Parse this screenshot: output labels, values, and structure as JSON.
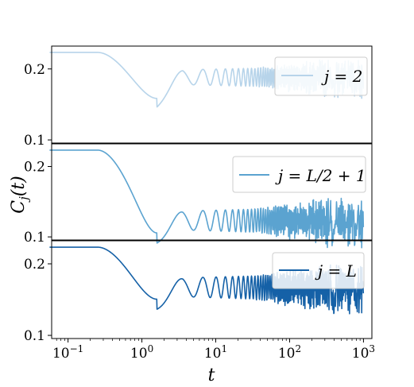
{
  "chart_data": [
    {
      "type": "line",
      "panel": "top",
      "series": [
        {
          "name": "j = 2",
          "color": "#b7d4ea"
        }
      ],
      "xscale": "log",
      "yscale": "log",
      "xlim": [
        0.06,
        1300
      ],
      "ylim": [
        0.097,
        0.25
      ],
      "yticks": [
        {
          "value": 0.1,
          "label": "0.1"
        },
        {
          "value": 0.2,
          "label": "0.2"
        }
      ],
      "curve": {
        "init": 0.235,
        "dip_t": 1.6,
        "dip_y": 0.15,
        "late_center": 0.185,
        "late_amp": 0.022
      },
      "legend": "top-right",
      "grid": false
    },
    {
      "type": "line",
      "panel": "middle",
      "series": [
        {
          "name": "j = L/2 + 1",
          "color": "#5ba3d0"
        }
      ],
      "xscale": "log",
      "yscale": "log",
      "xlim": [
        0.06,
        1300
      ],
      "ylim": [
        0.097,
        0.25
      ],
      "yticks": [
        {
          "value": 0.1,
          "label": "0.1"
        },
        {
          "value": 0.2,
          "label": "0.2"
        }
      ],
      "curve": {
        "init": 0.235,
        "dip_t": 1.6,
        "dip_y": 0.104,
        "late_center": 0.118,
        "late_amp": 0.018
      },
      "legend": "top-right",
      "grid": false
    },
    {
      "type": "line",
      "panel": "bottom",
      "series": [
        {
          "name": "j = L",
          "color": "#1561a7"
        }
      ],
      "xscale": "log",
      "yscale": "log",
      "xlim": [
        0.06,
        1300
      ],
      "ylim": [
        0.097,
        0.25
      ],
      "yticks": [
        {
          "value": 0.1,
          "label": "0.1"
        },
        {
          "value": 0.2,
          "label": "0.2"
        }
      ],
      "curve": {
        "init": 0.235,
        "dip_t": 1.6,
        "dip_y": 0.142,
        "late_center": 0.16,
        "late_amp": 0.024
      },
      "legend": "top-right",
      "grid": false
    }
  ],
  "shared": {
    "xlabel": "t",
    "ylabel": "C_j(t)",
    "xticks": [
      {
        "value": 0.1,
        "base": "10",
        "exp": "−1"
      },
      {
        "value": 1,
        "base": "10",
        "exp": "0"
      },
      {
        "value": 10,
        "base": "10",
        "exp": "1"
      },
      {
        "value": 100,
        "base": "10",
        "exp": "2"
      },
      {
        "value": 1000,
        "base": "10",
        "exp": "3"
      }
    ]
  }
}
